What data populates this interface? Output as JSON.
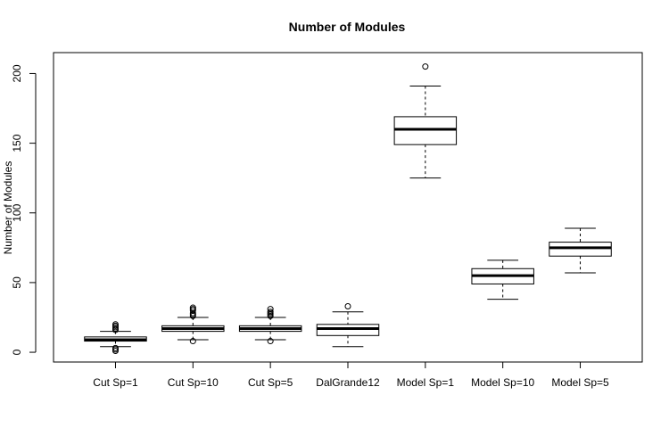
{
  "chart_data": {
    "type": "box",
    "title": "Number of Modules",
    "xlabel": "",
    "ylabel": "Number of Modules",
    "ylim": [
      -7,
      215
    ],
    "yticks": [
      0,
      50,
      100,
      150,
      200
    ],
    "grid": false,
    "legend": "none",
    "categories": [
      "Cut Sp=1",
      "Cut Sp=10",
      "Cut Sp=5",
      "DalGrande12",
      "Model Sp=1",
      "Model Sp=10",
      "Model Sp=5"
    ],
    "boxes": [
      {
        "category": "Cut Sp=1",
        "whisker_low": 4,
        "q1": 8,
        "median": 9,
        "q3": 11,
        "whisker_high": 15,
        "outliers": [
          1,
          2,
          3,
          16,
          17,
          18,
          19,
          20
        ]
      },
      {
        "category": "Cut Sp=10",
        "whisker_low": 9,
        "q1": 15,
        "median": 17,
        "q3": 19,
        "whisker_high": 25,
        "outliers": [
          8,
          26,
          27,
          28,
          30,
          31,
          32
        ]
      },
      {
        "category": "Cut Sp=5",
        "whisker_low": 9,
        "q1": 15,
        "median": 17,
        "q3": 19,
        "whisker_high": 25,
        "outliers": [
          8,
          26,
          27,
          28,
          29,
          31
        ]
      },
      {
        "category": "DalGrande12",
        "whisker_low": 4,
        "q1": 12,
        "median": 17,
        "q3": 20,
        "whisker_high": 29,
        "outliers": [
          33
        ]
      },
      {
        "category": "Model Sp=1",
        "whisker_low": 125,
        "q1": 149,
        "median": 160,
        "q3": 169,
        "whisker_high": 191,
        "outliers": [
          205
        ]
      },
      {
        "category": "Model Sp=10",
        "whisker_low": 38,
        "q1": 49,
        "median": 55,
        "q3": 60,
        "whisker_high": 66,
        "outliers": []
      },
      {
        "category": "Model Sp=5",
        "whisker_low": 57,
        "q1": 69,
        "median": 75,
        "q3": 79,
        "whisker_high": 89,
        "outliers": []
      }
    ]
  }
}
